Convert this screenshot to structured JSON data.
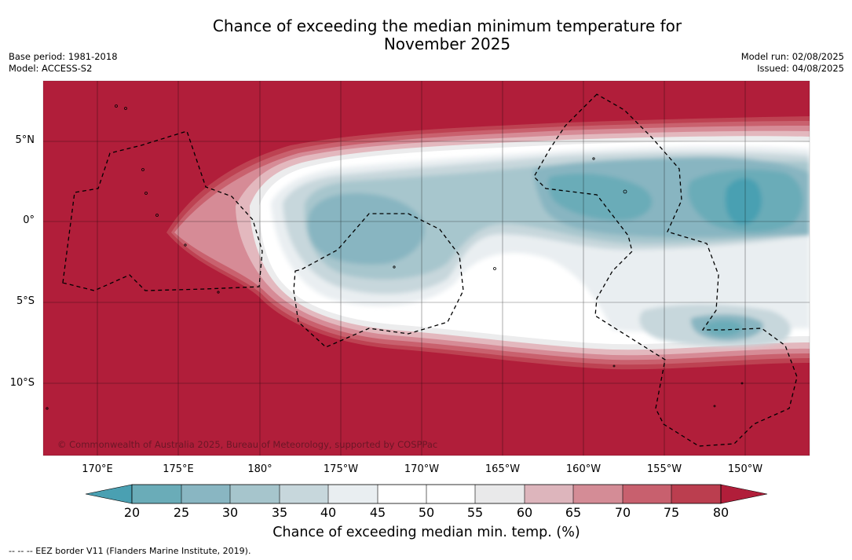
{
  "title_line1": "Chance of exceeding the median minimum temperature for",
  "title_line2": "November 2025",
  "base_period": "Base period: 1981-2018",
  "model": "Model: ACCESS-S2",
  "model_run": "Model run: 02/08/2025",
  "issued": "Issued: 04/08/2025",
  "credit": "© Commonwealth of Australia 2025, Bureau of Meteorology, supported by COSPPac",
  "map": {
    "lat_ticks": [
      "5°N",
      "0°",
      "5°S",
      "10°S"
    ],
    "lon_ticks": [
      "170°E",
      "175°E",
      "180°",
      "175°W",
      "170°W",
      "165°W",
      "160°W",
      "155°W",
      "150°W"
    ]
  },
  "colorbar": {
    "title": "Chance of exceeding median min. temp. (%)",
    "levels": [
      "20",
      "25",
      "30",
      "35",
      "40",
      "45",
      "50",
      "55",
      "60",
      "65",
      "70",
      "75",
      "80"
    ],
    "colors": [
      "#6aacb8",
      "#89b6c2",
      "#a6c5cc",
      "#c7d7dc",
      "#e9eef1",
      "#ffffff",
      "#ffffff",
      "#e9e9ea",
      "#ddb5bc",
      "#d48c96",
      "#c8606e",
      "#bb3e4f"
    ],
    "low_extend_color": "#4aa0b2",
    "high_extend_color": "#b11e3a"
  },
  "legend": {
    "eez": "--  --  -- EEZ border V11 (Flanders Marine Institute, 2019)."
  }
}
